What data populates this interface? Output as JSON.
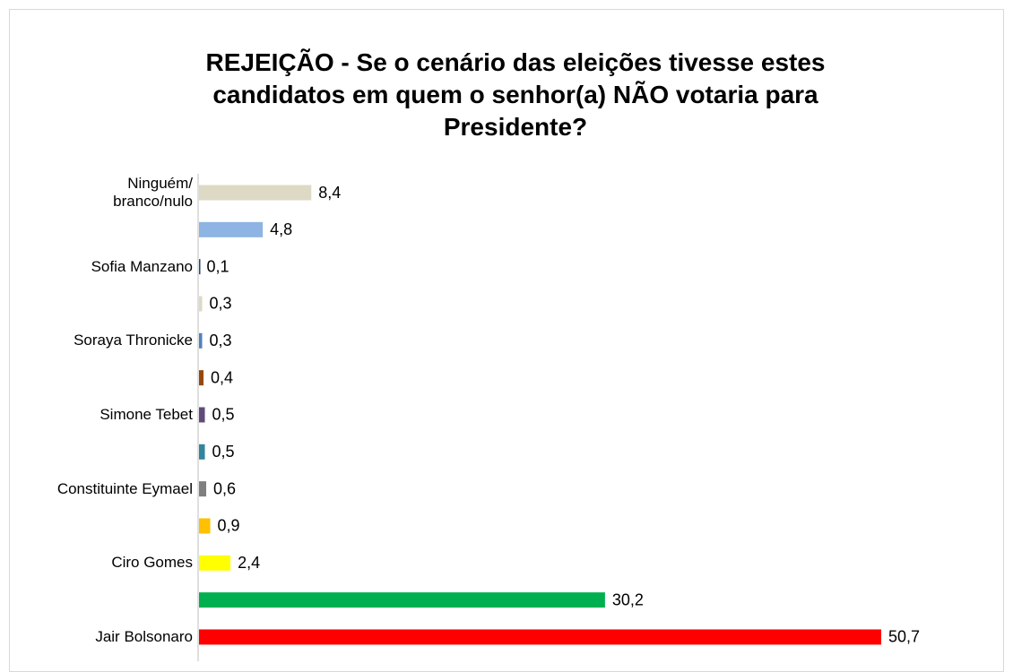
{
  "chart_data": {
    "type": "bar",
    "orientation": "horizontal",
    "title": "REJEIÇÃO - Se o cenário das eleições tivesse estes\ncandidatos em quem o senhor(a) NÃO votaria para\nPresidente?",
    "categories": [
      "Ninguém/\nbranco/nulo",
      null,
      "Sofia Manzano",
      null,
      "Soraya Thronicke",
      null,
      "Simone Tebet",
      null,
      "Constituinte Eymael",
      null,
      "Ciro Gomes",
      null,
      "Jair Bolsonaro"
    ],
    "values": [
      8.4,
      4.8,
      0.1,
      0.3,
      0.3,
      0.4,
      0.5,
      0.5,
      0.6,
      0.9,
      2.4,
      30.2,
      50.7
    ],
    "value_labels": [
      "8,4",
      "4,8",
      "0,1",
      "0,3",
      "0,3",
      "0,4",
      "0,5",
      "0,5",
      "0,6",
      "0,9",
      "2,4",
      "30,2",
      "50,7"
    ],
    "colors": [
      "#ddd9c4",
      "#8db4e2",
      "#1f497d",
      "#ddd9c4",
      "#4f81bd",
      "#974706",
      "#604a7b",
      "#31859c",
      "#7f7f7f",
      "#ffc000",
      "#ffff00",
      "#00b050",
      "#ff0000"
    ]
  }
}
